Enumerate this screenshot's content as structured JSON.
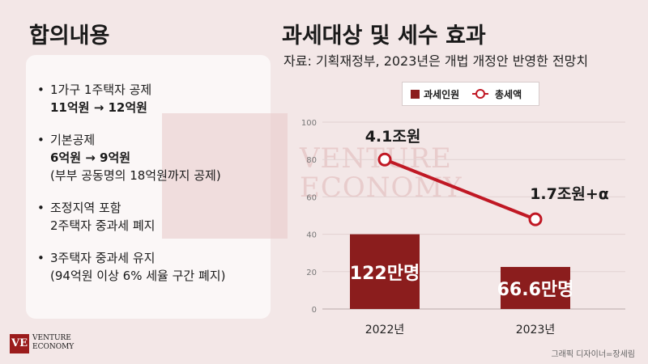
{
  "left_title": "합의내용",
  "right_title": "과세대상 및 세수 효과",
  "source": "자료: 기획재정부, 2023년은 개법 개정안 반영한 전망치",
  "bullets": [
    {
      "line1": "1가구 1주택자 공제",
      "line2": "11억원 → 12억원",
      "line3": ""
    },
    {
      "line1": "기본공제",
      "line2": "6억원 → 9억원",
      "line3": "(부부 공동명의 18억원까지 공제)"
    },
    {
      "line1": "조정지역 포함",
      "line2": "2주택자 중과세 폐지",
      "line3": ""
    },
    {
      "line1": "3주택자 중과세 유지",
      "line2": "(94억원 이상 6% 세율 구간 폐지)",
      "line3": ""
    }
  ],
  "watermark_text": [
    "VENTURE",
    "ECONOMY"
  ],
  "logo": {
    "mark": "VE",
    "line1": "VENTURE",
    "line2": "ECONOMY"
  },
  "credit": "그래픽 디자이너=장세림",
  "colors": {
    "bar": "#8b1d1d",
    "line": "#c01824",
    "background": "#f3e7e7"
  },
  "chart_data": {
    "type": "bar",
    "categories": [
      "2022년",
      "2023년"
    ],
    "ylim": [
      0,
      100
    ],
    "yticks": [
      0,
      20,
      40,
      60,
      80,
      100
    ],
    "grid": true,
    "legend_position": "top",
    "series": [
      {
        "name": "과세인원",
        "type": "bar",
        "values": [
          40,
          22.5
        ],
        "labels": [
          "122만명",
          "66.6만명"
        ]
      },
      {
        "name": "총세액",
        "type": "line",
        "values": [
          80,
          48
        ],
        "labels": [
          "4.1조원",
          "1.7조원+α"
        ]
      }
    ]
  }
}
